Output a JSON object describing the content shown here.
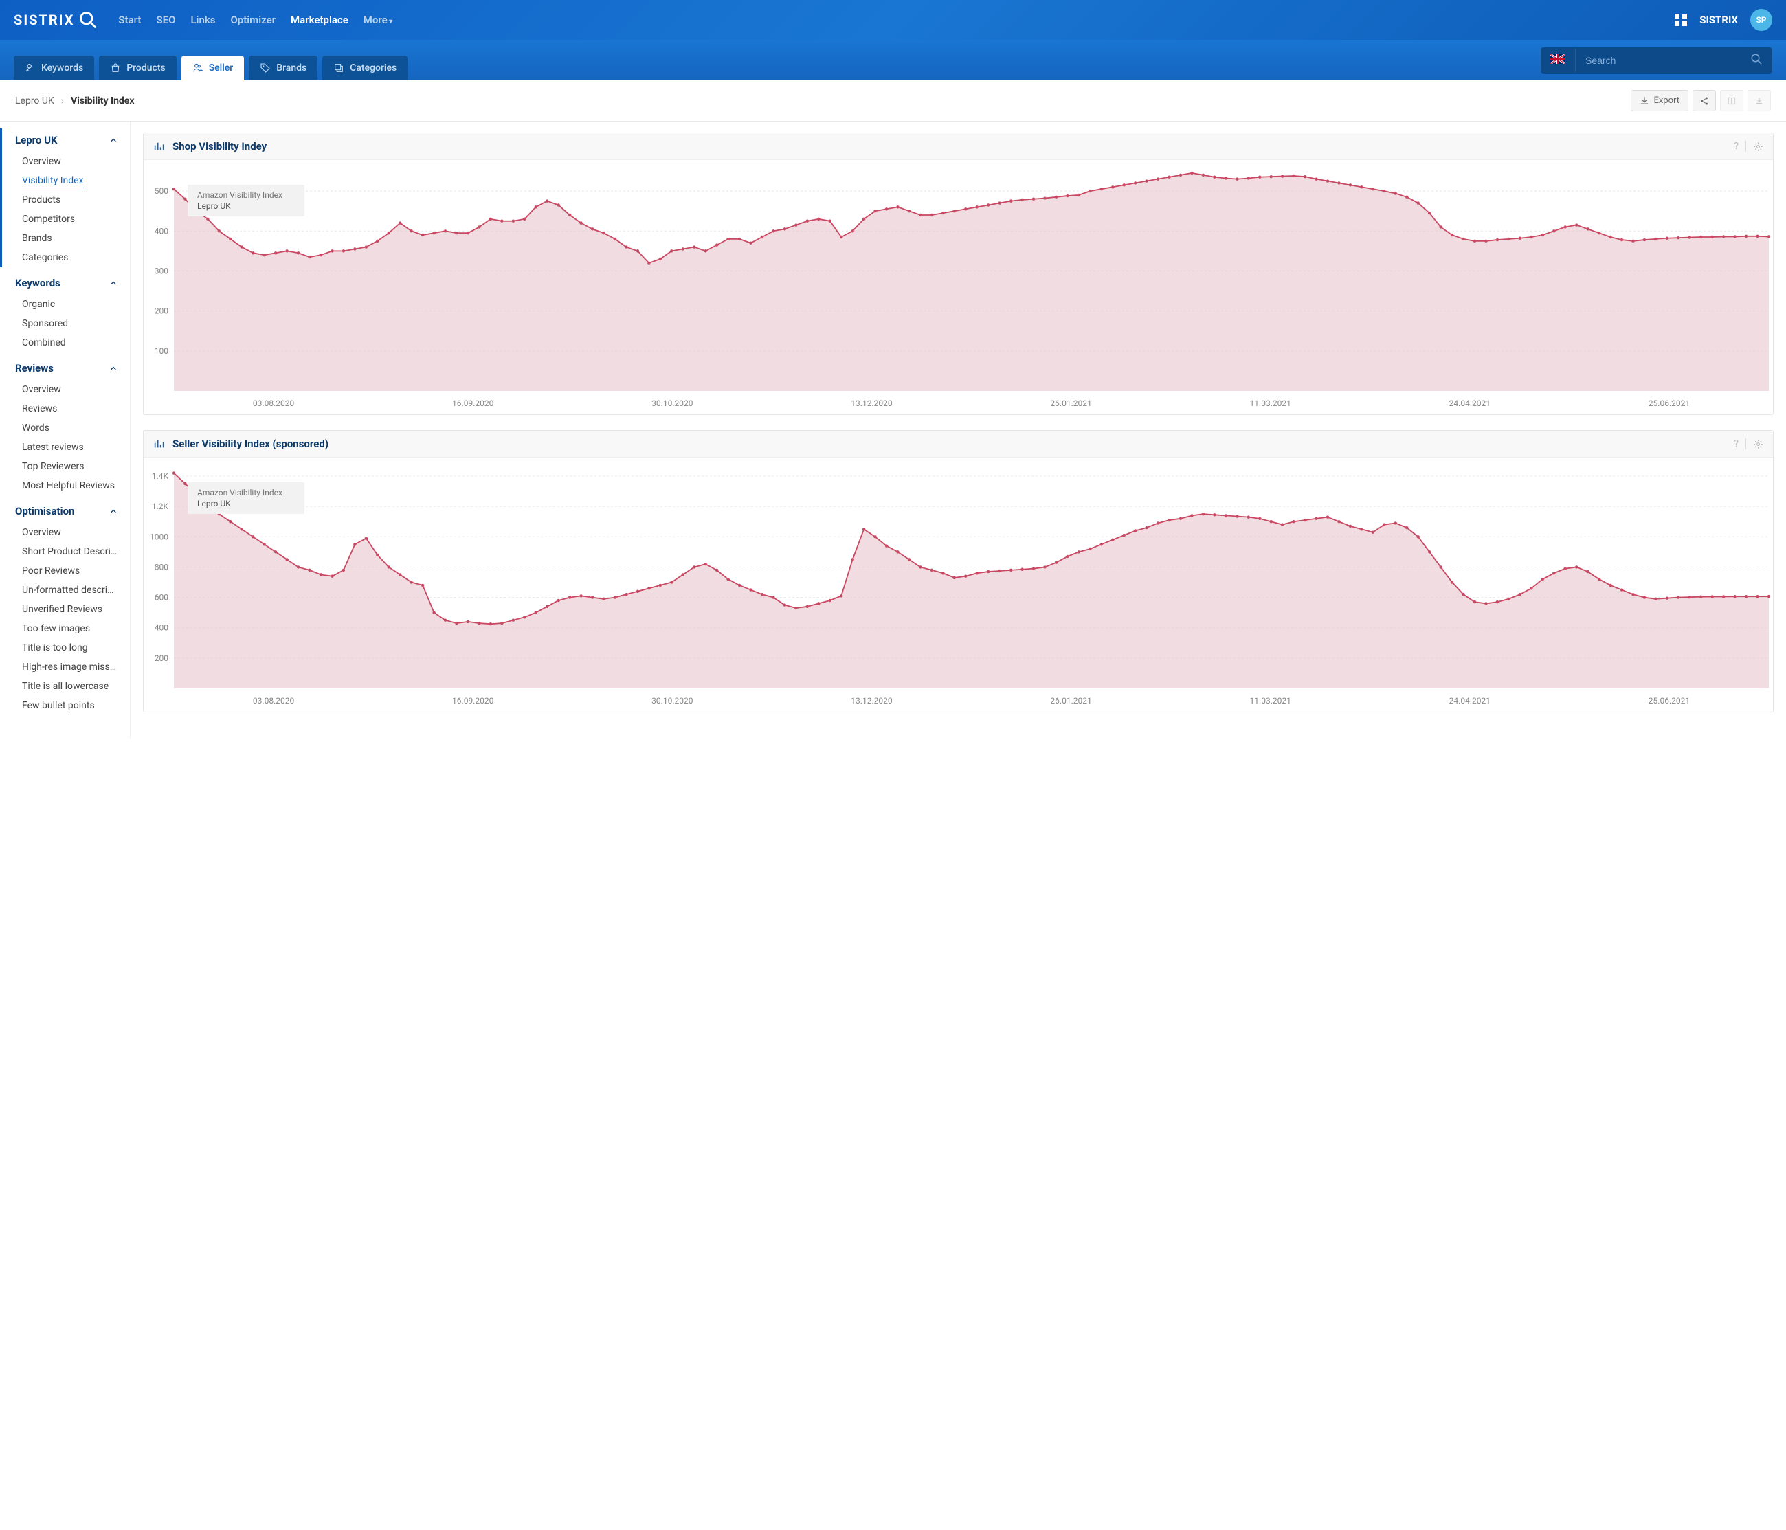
{
  "brand": "SISTRIX",
  "avatar_initials": "SP",
  "topnav": {
    "items": [
      {
        "label": "Start",
        "active": false
      },
      {
        "label": "SEO",
        "active": false
      },
      {
        "label": "Links",
        "active": false
      },
      {
        "label": "Optimizer",
        "active": false
      },
      {
        "label": "Marketplace",
        "active": true
      },
      {
        "label": "More",
        "active": false,
        "dropdown": true
      }
    ]
  },
  "subnav": {
    "tabs": [
      {
        "label": "Keywords",
        "icon": "key",
        "active": false
      },
      {
        "label": "Products",
        "icon": "bag",
        "active": false
      },
      {
        "label": "Seller",
        "icon": "person",
        "active": true
      },
      {
        "label": "Brands",
        "icon": "tag",
        "active": false
      },
      {
        "label": "Categories",
        "icon": "stack",
        "active": false
      }
    ],
    "search_placeholder": "Search",
    "flag": "uk"
  },
  "breadcrumb": {
    "parent": "Lepro UK",
    "current": "Visibility Index"
  },
  "actions": {
    "export_label": "Export"
  },
  "sidebar": {
    "groups": [
      {
        "title": "Lepro UK",
        "bordered": true,
        "items": [
          {
            "label": "Overview",
            "bordered": true
          },
          {
            "label": "Visibility Index",
            "active": true,
            "bordered": true
          },
          {
            "label": "Products",
            "bordered": true
          },
          {
            "label": "Competitors",
            "bordered": true
          },
          {
            "label": "Brands",
            "bordered": true
          },
          {
            "label": "Categories",
            "bordered": true
          }
        ]
      },
      {
        "title": "Keywords",
        "items": [
          {
            "label": "Organic"
          },
          {
            "label": "Sponsored"
          },
          {
            "label": "Combined"
          }
        ]
      },
      {
        "title": "Reviews",
        "items": [
          {
            "label": "Overview"
          },
          {
            "label": "Reviews"
          },
          {
            "label": "Words"
          },
          {
            "label": "Latest reviews"
          },
          {
            "label": "Top Reviewers"
          },
          {
            "label": "Most Helpful Reviews"
          }
        ]
      },
      {
        "title": "Optimisation",
        "items": [
          {
            "label": "Overview"
          },
          {
            "label": "Short Product Descripti…"
          },
          {
            "label": "Poor Reviews"
          },
          {
            "label": "Un-formatted descriptio…"
          },
          {
            "label": "Unverified Reviews"
          },
          {
            "label": "Too few images"
          },
          {
            "label": "Title is too long"
          },
          {
            "label": "High-res image missing"
          },
          {
            "label": "Title is all lowercase"
          },
          {
            "label": "Few bullet points"
          }
        ]
      }
    ]
  },
  "charts": {
    "xlabels": [
      "03.08.2020",
      "16.09.2020",
      "30.10.2020",
      "13.12.2020",
      "26.01.2021",
      "11.03.2021",
      "24.04.2021",
      "25.06.2021"
    ],
    "legend_line1": "Amazon Visibility Index",
    "legend_line2": "Lepro UK",
    "colors": {
      "line": "#c94863",
      "area": "#e8c6cd",
      "grid": "#e8e8e8",
      "axis_text": "#888888",
      "panel_title": "#0b3a6b"
    },
    "chart1": {
      "title": "Shop Visibility Indey",
      "ylim": [
        0,
        550
      ],
      "yticks": [
        100,
        200,
        300,
        400,
        500
      ],
      "data": [
        505,
        480,
        450,
        430,
        400,
        380,
        360,
        345,
        340,
        345,
        350,
        345,
        335,
        340,
        350,
        350,
        355,
        360,
        375,
        395,
        420,
        400,
        390,
        395,
        400,
        395,
        395,
        410,
        430,
        425,
        425,
        430,
        460,
        475,
        465,
        440,
        420,
        405,
        395,
        380,
        360,
        350,
        320,
        330,
        350,
        355,
        360,
        350,
        365,
        380,
        380,
        370,
        385,
        400,
        405,
        415,
        425,
        430,
        425,
        385,
        400,
        430,
        450,
        455,
        460,
        450,
        440,
        440,
        445,
        450,
        455,
        460,
        465,
        470,
        475,
        478,
        480,
        482,
        485,
        488,
        490,
        500,
        505,
        510,
        515,
        520,
        525,
        530,
        535,
        540,
        545,
        540,
        535,
        532,
        530,
        532,
        535,
        536,
        537,
        538,
        536,
        530,
        525,
        520,
        515,
        510,
        505,
        500,
        494,
        485,
        470,
        445,
        410,
        390,
        380,
        375,
        375,
        378,
        380,
        382,
        385,
        390,
        400,
        410,
        415,
        405,
        395,
        385,
        378,
        375,
        378,
        380,
        382,
        383,
        384,
        385,
        385,
        386,
        386,
        387,
        387,
        386
      ]
    },
    "chart2": {
      "title": "Seller Visibility Index (sponsored)",
      "ylim": [
        0,
        1450
      ],
      "yticks": [
        200,
        400,
        600,
        800,
        1000,
        1200,
        1400
      ],
      "ytick_labels": [
        "200",
        "400",
        "600",
        "800",
        "1000",
        "1.2K",
        "1.4K"
      ],
      "data": [
        1420,
        1350,
        1280,
        1200,
        1150,
        1100,
        1050,
        1000,
        950,
        900,
        850,
        800,
        780,
        750,
        740,
        780,
        950,
        990,
        880,
        800,
        750,
        700,
        680,
        500,
        450,
        430,
        440,
        430,
        425,
        430,
        450,
        470,
        500,
        540,
        580,
        600,
        610,
        600,
        590,
        600,
        620,
        640,
        660,
        680,
        700,
        750,
        800,
        820,
        780,
        720,
        680,
        650,
        620,
        600,
        550,
        530,
        540,
        560,
        580,
        610,
        850,
        1050,
        1000,
        940,
        900,
        850,
        800,
        780,
        760,
        730,
        740,
        760,
        770,
        775,
        780,
        785,
        790,
        800,
        830,
        870,
        900,
        920,
        950,
        980,
        1010,
        1040,
        1060,
        1090,
        1110,
        1120,
        1140,
        1150,
        1145,
        1140,
        1135,
        1130,
        1120,
        1100,
        1080,
        1100,
        1110,
        1120,
        1130,
        1100,
        1070,
        1050,
        1030,
        1080,
        1090,
        1060,
        1000,
        900,
        800,
        700,
        620,
        570,
        560,
        570,
        590,
        620,
        660,
        720,
        760,
        790,
        800,
        770,
        720,
        680,
        650,
        620,
        600,
        590,
        595,
        600,
        602,
        604,
        605,
        605,
        606,
        606,
        606,
        607
      ]
    }
  }
}
